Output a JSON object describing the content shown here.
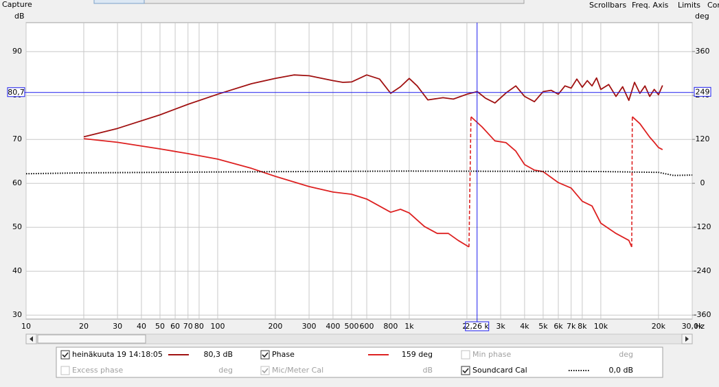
{
  "toolbar": {
    "left": "Capture",
    "right": [
      "Scrollbars",
      "Freq. Axis",
      "Limits",
      "Con"
    ]
  },
  "chart_data": {
    "type": "line",
    "y_axis_label": "dB",
    "y2_axis_label": "deg",
    "x_axis_label": "Hz",
    "xscale": "log",
    "grid": true,
    "xlim": [
      10,
      30000
    ],
    "xticks": [
      10,
      20,
      30,
      40,
      50,
      60,
      70,
      80,
      100,
      200,
      300,
      400,
      500,
      600,
      800,
      {
        "value": 1000,
        "label": "1k"
      },
      {
        "value": 2000,
        "label": "2k"
      },
      {
        "value": 3000,
        "label": "3k"
      },
      {
        "value": 4000,
        "label": "4k"
      },
      {
        "value": 5000,
        "label": "5k"
      },
      {
        "value": 6000,
        "label": "6k"
      },
      {
        "value": 7000,
        "label": "7k"
      },
      {
        "value": 8000,
        "label": "8k"
      },
      {
        "value": 10000,
        "label": "10k"
      },
      {
        "value": 20000,
        "label": "20k"
      },
      {
        "value": 30000,
        "label": "30,0k"
      }
    ],
    "ylim": [
      29.1,
      96.6
    ],
    "yticks": [
      30,
      40,
      50,
      60,
      70,
      80,
      90
    ],
    "y2lim": [
      -371,
      439
    ],
    "y2ticks": [
      -360,
      -240,
      -120,
      0,
      120,
      240,
      360
    ],
    "cursor": {
      "x": {
        "value": 2260,
        "label": "2,26 k"
      },
      "y": {
        "value": 80.7,
        "label": "80,7"
      },
      "y2": {
        "value": 249,
        "label": "249"
      }
    },
    "series": [
      {
        "name": "heinäkuuta 19 14:18:05",
        "color": "#a01010",
        "axis": "y",
        "style": "solid",
        "readout": "80,3 dB",
        "x": [
          20,
          30,
          50,
          70,
          100,
          150,
          200,
          250,
          300,
          400,
          450,
          500,
          600,
          700,
          800,
          900,
          1000,
          1100,
          1250,
          1500,
          1700,
          2000,
          2265,
          2500,
          2800,
          3200,
          3600,
          4000,
          4500,
          5000,
          5500,
          6000,
          6500,
          7000,
          7500,
          8000,
          8500,
          9000,
          9500,
          10000,
          11000,
          12000,
          13000,
          14000,
          15000,
          16000,
          17000,
          18000,
          19000,
          20000,
          21000
        ],
        "values": [
          70.6,
          72.5,
          75.6,
          78,
          80.3,
          82.7,
          83.9,
          84.7,
          84.5,
          83.4,
          83,
          83.1,
          84.7,
          83.75,
          80.5,
          82,
          83.9,
          82.2,
          79,
          79.5,
          79.2,
          80.3,
          80.9,
          79.4,
          78.3,
          80.6,
          82.2,
          79.8,
          78.6,
          80.9,
          81.2,
          80.3,
          82.2,
          81.7,
          83.75,
          81.9,
          83.4,
          82.2,
          84,
          81.4,
          82.5,
          79.8,
          82,
          78.9,
          83,
          80.5,
          82.2,
          79.8,
          81.4,
          80.2,
          82.3
        ]
      },
      {
        "name": "Phase",
        "color": "#dd2020",
        "axis": "y2",
        "style": "solid",
        "readout": "159 deg",
        "x": [
          20,
          30,
          50,
          70,
          100,
          150,
          200,
          300,
          400,
          500,
          600,
          800,
          900,
          1000,
          1200,
          1400,
          1600,
          1800,
          2050,
          2100,
          2400,
          2800,
          3200,
          3600,
          4000,
          4500,
          5000,
          6000,
          7000,
          8000,
          9000,
          10000,
          12000,
          14000,
          14500,
          14600,
          16000,
          18000,
          19000,
          20000,
          21000
        ],
        "values": [
          122,
          112,
          94,
          81,
          66,
          41,
          19,
          -9,
          -24,
          -30,
          -43,
          -79,
          -71,
          -81,
          -118,
          -137,
          -137,
          -156,
          -174,
          182,
          154,
          116,
          111,
          88,
          51,
          36,
          32,
          2,
          -13,
          -49,
          -62,
          -109,
          -137,
          -156,
          -174,
          182,
          163,
          126,
          112,
          98,
          92
        ]
      },
      {
        "name": "Soundcard Cal",
        "color": "#000000",
        "axis": "y",
        "style": "dotted",
        "readout": "0,0 dB",
        "x": [
          10,
          20,
          100,
          1000,
          10000,
          20000,
          24000,
          30000
        ],
        "values": [
          62.2,
          62.4,
          62.6,
          62.8,
          62.7,
          62.5,
          61.8,
          61.9
        ]
      }
    ],
    "inactive_items": [
      {
        "name": "Min phase",
        "readout": "deg",
        "checked": false
      },
      {
        "name": "Excess phase",
        "readout": "deg",
        "checked": false
      },
      {
        "name": "Mic/Meter Cal",
        "readout": "dB",
        "checked": true
      }
    ]
  }
}
